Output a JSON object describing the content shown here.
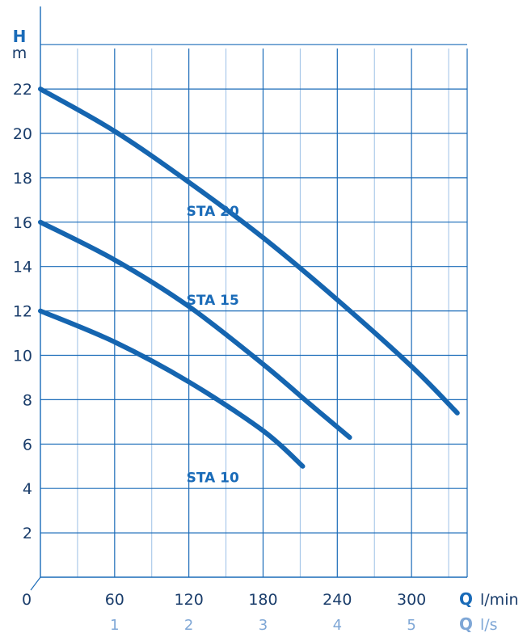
{
  "chart_data": {
    "type": "line",
    "y_axis": {
      "symbol": "H",
      "unit": "m",
      "ticks": [
        "2",
        "4",
        "6",
        "8",
        "10",
        "12",
        "14",
        "16",
        "18",
        "20",
        "22"
      ],
      "ylim": [
        0,
        24
      ]
    },
    "x_axis": {
      "symbol": "Q",
      "unit": "l/min",
      "ticks": [
        "0",
        "60",
        "120",
        "180",
        "240",
        "300"
      ],
      "xlim": [
        0,
        345
      ],
      "secondary": {
        "symbol": "Q",
        "unit": "l/s",
        "ticks": [
          "1",
          "2",
          "3",
          "4",
          "5"
        ]
      }
    },
    "grid": true,
    "series": [
      {
        "name": "STA 20",
        "points": [
          [
            0,
            22
          ],
          [
            60,
            20.1
          ],
          [
            120,
            17.8
          ],
          [
            180,
            15.3
          ],
          [
            240,
            12.5
          ],
          [
            300,
            9.5
          ],
          [
            337,
            7.4
          ]
        ]
      },
      {
        "name": "STA 15",
        "points": [
          [
            0,
            16
          ],
          [
            60,
            14.3
          ],
          [
            120,
            12.2
          ],
          [
            180,
            9.6
          ],
          [
            220,
            7.7
          ],
          [
            250,
            6.3
          ]
        ]
      },
      {
        "name": "STA 10",
        "points": [
          [
            0,
            12
          ],
          [
            60,
            10.6
          ],
          [
            120,
            8.8
          ],
          [
            180,
            6.6
          ],
          [
            212,
            5.0
          ]
        ]
      }
    ]
  },
  "colors": {
    "curve": "#1565b0",
    "grid": "#1a6bb8",
    "grid_minor": "#9cc0e6",
    "accent": "#1a6bb8"
  }
}
